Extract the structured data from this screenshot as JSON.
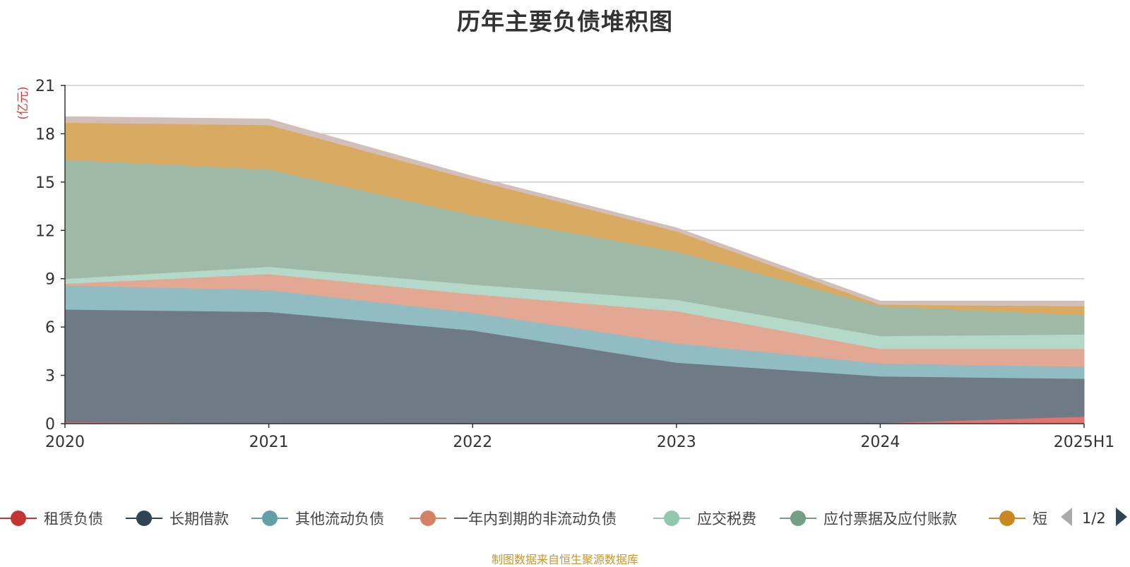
{
  "title": "历年主要负债堆积图",
  "source": "制图数据来自恒生聚源数据库",
  "legend_page": "1/2",
  "chart_data": {
    "type": "area",
    "stacked": true,
    "title": "历年主要负债堆积图",
    "ylabel": "(亿元)",
    "xlabel": "",
    "categories": [
      "2020",
      "2021",
      "2022",
      "2023",
      "2024",
      "2025H1"
    ],
    "ylim": [
      0,
      21
    ],
    "yticks": [
      0,
      3,
      6,
      9,
      12,
      15,
      18,
      21
    ],
    "grid": true,
    "legend_position": "bottom",
    "series": [
      {
        "name": "租赁负债",
        "color": "#c23531",
        "fill": "#e07470",
        "values": [
          0.1,
          0.05,
          0.0,
          0.0,
          0.05,
          0.45
        ]
      },
      {
        "name": "长期借款",
        "color": "#2f4554",
        "fill": "#6e7b86",
        "values": [
          7.0,
          6.9,
          5.8,
          3.8,
          2.9,
          2.35
        ]
      },
      {
        "name": "其他流动负债",
        "color": "#61a0a8",
        "fill": "#90bcc2",
        "values": [
          1.5,
          1.35,
          1.1,
          1.2,
          0.8,
          0.75
        ]
      },
      {
        "name": "一年内到期的非流动负债",
        "color": "#d48265",
        "fill": "#e2a894",
        "values": [
          0.1,
          1.0,
          1.15,
          2.0,
          0.9,
          1.1
        ]
      },
      {
        "name": "应交税费",
        "color": "#91c7ae",
        "fill": "#b4d9c8",
        "values": [
          0.3,
          0.45,
          0.6,
          0.7,
          0.8,
          0.9
        ]
      },
      {
        "name": "应付票据及应付账款",
        "color": "#749f83",
        "fill": "#9ebaa6",
        "values": [
          7.4,
          6.05,
          4.3,
          3.0,
          1.85,
          1.2
        ]
      },
      {
        "name": "短",
        "color": "#ca8622",
        "fill": "#d9aa62",
        "values": [
          2.3,
          2.75,
          2.2,
          1.25,
          0.1,
          0.55
        ]
      },
      {
        "name": "",
        "color": "#bda29a",
        "fill": "#d2bfb9",
        "values": [
          0.35,
          0.35,
          0.2,
          0.2,
          0.2,
          0.3
        ]
      }
    ]
  }
}
